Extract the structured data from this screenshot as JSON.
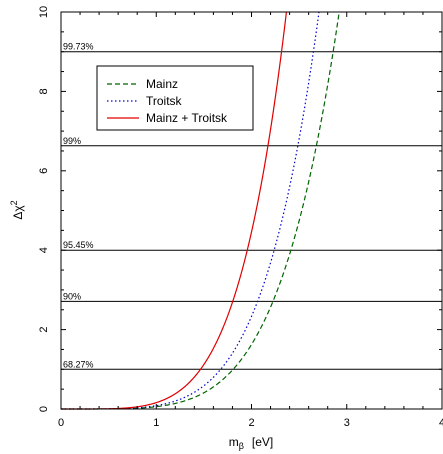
{
  "chart_data": {
    "type": "line",
    "xlabel": {
      "main": "m",
      "sub": "β",
      "unit": "[eV]"
    },
    "ylabel": {
      "main": "Δχ",
      "sup": "2"
    },
    "xlim": [
      0,
      4
    ],
    "ylim": [
      0,
      10
    ],
    "x_ticks": [
      "0",
      "1",
      "2",
      "3",
      "4"
    ],
    "y_ticks": [
      "0",
      "2",
      "4",
      "6",
      "8",
      "10"
    ],
    "confidence_levels": [
      {
        "label": "68.27%",
        "value": 1.0
      },
      {
        "label": "90%",
        "value": 2.71
      },
      {
        "label": "95.45%",
        "value": 4.0
      },
      {
        "label": "99%",
        "value": 6.63
      },
      {
        "label": "99.73%",
        "value": 9.0
      }
    ],
    "series": [
      {
        "name": "Mainz",
        "color": "#006400",
        "dash": "dashed",
        "scale_at_m": 1.0,
        "value_at_scale": 0.0583,
        "power": 4.8
      },
      {
        "name": "Troitsk",
        "color": "#0000cc",
        "dash": "dotted",
        "scale_at_m": 1.0,
        "value_at_scale": 0.0837,
        "power": 4.8
      },
      {
        "name": "Mainz + Troitsk",
        "color": "#e00000",
        "dash": "solid",
        "scale_at_m": 1.0,
        "value_at_scale": 0.16,
        "power": 4.8
      }
    ],
    "legend_position": "upper-left"
  }
}
